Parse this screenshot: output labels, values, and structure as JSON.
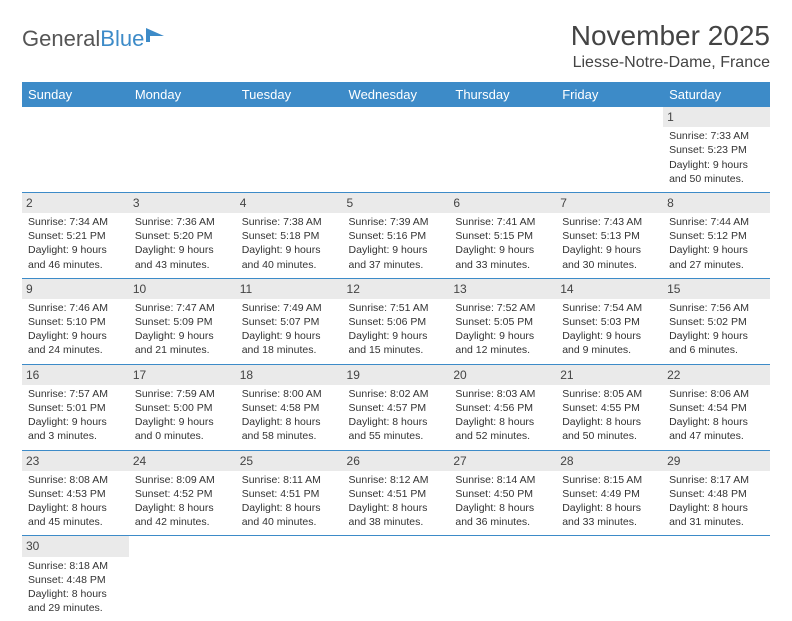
{
  "logo": {
    "text1": "General",
    "text2": "Blue"
  },
  "title": "November 2025",
  "location": "Liesse-Notre-Dame, France",
  "colors": {
    "header_bg": "#3d8bc8",
    "header_text": "#ffffff",
    "daynum_bg": "#eaeaea",
    "row_border": "#3d8bc8",
    "text": "#333333"
  },
  "weekdays": [
    "Sunday",
    "Monday",
    "Tuesday",
    "Wednesday",
    "Thursday",
    "Friday",
    "Saturday"
  ],
  "weeks": [
    [
      null,
      null,
      null,
      null,
      null,
      null,
      {
        "n": "1",
        "sr": "7:33 AM",
        "ss": "5:23 PM",
        "dl": "9 hours and 50 minutes."
      }
    ],
    [
      {
        "n": "2",
        "sr": "7:34 AM",
        "ss": "5:21 PM",
        "dl": "9 hours and 46 minutes."
      },
      {
        "n": "3",
        "sr": "7:36 AM",
        "ss": "5:20 PM",
        "dl": "9 hours and 43 minutes."
      },
      {
        "n": "4",
        "sr": "7:38 AM",
        "ss": "5:18 PM",
        "dl": "9 hours and 40 minutes."
      },
      {
        "n": "5",
        "sr": "7:39 AM",
        "ss": "5:16 PM",
        "dl": "9 hours and 37 minutes."
      },
      {
        "n": "6",
        "sr": "7:41 AM",
        "ss": "5:15 PM",
        "dl": "9 hours and 33 minutes."
      },
      {
        "n": "7",
        "sr": "7:43 AM",
        "ss": "5:13 PM",
        "dl": "9 hours and 30 minutes."
      },
      {
        "n": "8",
        "sr": "7:44 AM",
        "ss": "5:12 PM",
        "dl": "9 hours and 27 minutes."
      }
    ],
    [
      {
        "n": "9",
        "sr": "7:46 AM",
        "ss": "5:10 PM",
        "dl": "9 hours and 24 minutes."
      },
      {
        "n": "10",
        "sr": "7:47 AM",
        "ss": "5:09 PM",
        "dl": "9 hours and 21 minutes."
      },
      {
        "n": "11",
        "sr": "7:49 AM",
        "ss": "5:07 PM",
        "dl": "9 hours and 18 minutes."
      },
      {
        "n": "12",
        "sr": "7:51 AM",
        "ss": "5:06 PM",
        "dl": "9 hours and 15 minutes."
      },
      {
        "n": "13",
        "sr": "7:52 AM",
        "ss": "5:05 PM",
        "dl": "9 hours and 12 minutes."
      },
      {
        "n": "14",
        "sr": "7:54 AM",
        "ss": "5:03 PM",
        "dl": "9 hours and 9 minutes."
      },
      {
        "n": "15",
        "sr": "7:56 AM",
        "ss": "5:02 PM",
        "dl": "9 hours and 6 minutes."
      }
    ],
    [
      {
        "n": "16",
        "sr": "7:57 AM",
        "ss": "5:01 PM",
        "dl": "9 hours and 3 minutes."
      },
      {
        "n": "17",
        "sr": "7:59 AM",
        "ss": "5:00 PM",
        "dl": "9 hours and 0 minutes."
      },
      {
        "n": "18",
        "sr": "8:00 AM",
        "ss": "4:58 PM",
        "dl": "8 hours and 58 minutes."
      },
      {
        "n": "19",
        "sr": "8:02 AM",
        "ss": "4:57 PM",
        "dl": "8 hours and 55 minutes."
      },
      {
        "n": "20",
        "sr": "8:03 AM",
        "ss": "4:56 PM",
        "dl": "8 hours and 52 minutes."
      },
      {
        "n": "21",
        "sr": "8:05 AM",
        "ss": "4:55 PM",
        "dl": "8 hours and 50 minutes."
      },
      {
        "n": "22",
        "sr": "8:06 AM",
        "ss": "4:54 PM",
        "dl": "8 hours and 47 minutes."
      }
    ],
    [
      {
        "n": "23",
        "sr": "8:08 AM",
        "ss": "4:53 PM",
        "dl": "8 hours and 45 minutes."
      },
      {
        "n": "24",
        "sr": "8:09 AM",
        "ss": "4:52 PM",
        "dl": "8 hours and 42 minutes."
      },
      {
        "n": "25",
        "sr": "8:11 AM",
        "ss": "4:51 PM",
        "dl": "8 hours and 40 minutes."
      },
      {
        "n": "26",
        "sr": "8:12 AM",
        "ss": "4:51 PM",
        "dl": "8 hours and 38 minutes."
      },
      {
        "n": "27",
        "sr": "8:14 AM",
        "ss": "4:50 PM",
        "dl": "8 hours and 36 minutes."
      },
      {
        "n": "28",
        "sr": "8:15 AM",
        "ss": "4:49 PM",
        "dl": "8 hours and 33 minutes."
      },
      {
        "n": "29",
        "sr": "8:17 AM",
        "ss": "4:48 PM",
        "dl": "8 hours and 31 minutes."
      }
    ],
    [
      {
        "n": "30",
        "sr": "8:18 AM",
        "ss": "4:48 PM",
        "dl": "8 hours and 29 minutes."
      },
      null,
      null,
      null,
      null,
      null,
      null
    ]
  ],
  "labels": {
    "sunrise": "Sunrise: ",
    "sunset": "Sunset: ",
    "daylight": "Daylight: "
  }
}
